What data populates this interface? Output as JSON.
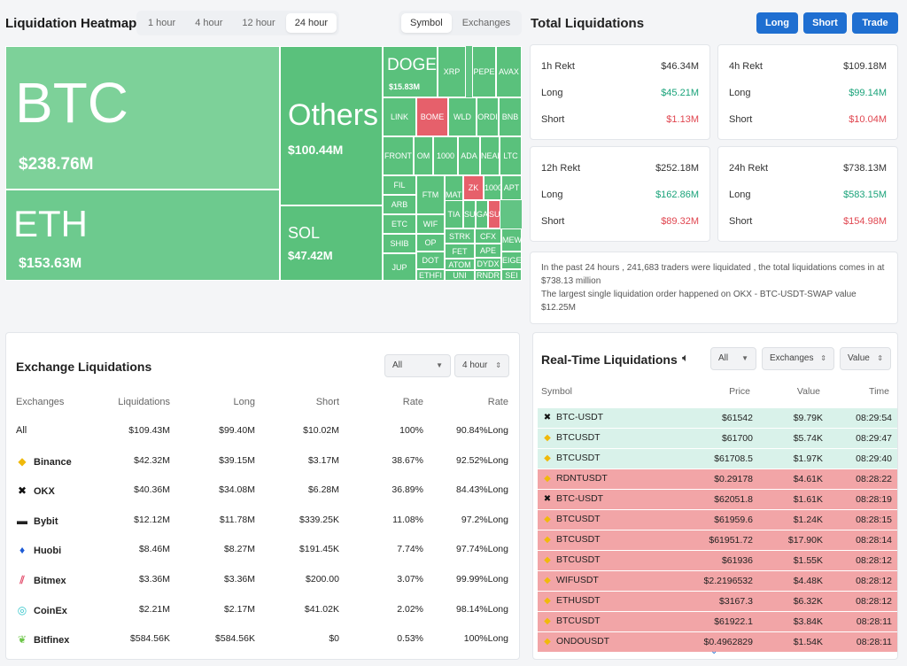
{
  "heatmap": {
    "title": "Liquidation Heatmap",
    "time_tabs": [
      "1 hour",
      "4 hour",
      "12 hour",
      "24 hour"
    ],
    "time_selected": "24 hour",
    "type_tabs": [
      "Symbol",
      "Exchanges"
    ],
    "type_selected": "Symbol",
    "big_tiles": [
      {
        "name": "BTC",
        "value": "$238.76M"
      },
      {
        "name": "ETH",
        "value": "$153.63M"
      },
      {
        "name": "Others",
        "value": "$100.44M"
      },
      {
        "name": "SOL",
        "value": "$47.42M"
      },
      {
        "name": "DOGE",
        "value": "$15.83M"
      }
    ],
    "small_tiles": [
      "XRP",
      "PEPE",
      "AVAX",
      "LINK",
      "BOME",
      "WLD",
      "ORDI",
      "BNB",
      "FRONT",
      "OM",
      "1000",
      "ADA",
      "NEAR",
      "LTC",
      "FIL",
      "FTM",
      "MATIC",
      "ZK",
      "1000",
      "APT",
      "ARB",
      "WIF",
      "TIA",
      "SUI",
      "GALA",
      "SUN",
      "ETC",
      "OP",
      "STRK",
      "CFX",
      "MEW",
      "SHIB",
      "DOT",
      "FET",
      "APE",
      "JUP",
      "ATOM",
      "DYDX",
      "EIGEN",
      "ETHFI",
      "UNI",
      "RNDR",
      "SEI"
    ]
  },
  "total": {
    "title": "Total Liquidations",
    "buttons": [
      "Long",
      "Short",
      "Trade"
    ],
    "cards": [
      {
        "label": "1h Rekt",
        "total": "$46.34M",
        "long_label": "Long",
        "long": "$45.21M",
        "short_label": "Short",
        "short": "$1.13M"
      },
      {
        "label": "4h Rekt",
        "total": "$109.18M",
        "long_label": "Long",
        "long": "$99.14M",
        "short_label": "Short",
        "short": "$10.04M"
      },
      {
        "label": "12h Rekt",
        "total": "$252.18M",
        "long_label": "Long",
        "long": "$162.86M",
        "short_label": "Short",
        "short": "$89.32M"
      },
      {
        "label": "24h Rekt",
        "total": "$738.13M",
        "long_label": "Long",
        "long": "$583.15M",
        "short_label": "Short",
        "short": "$154.98M"
      }
    ],
    "summary_1": "In the past 24 hours , 241,683 traders were liquidated , the total liquidations comes in at $738.13 million",
    "summary_2": "The largest single liquidation order happened on OKX - BTC-USDT-SWAP value $12.25M"
  },
  "exchange": {
    "title": "Exchange Liquidations",
    "filter": "All",
    "period": "4 hour",
    "headers": [
      "Exchanges",
      "Liquidations",
      "Long",
      "Short",
      "Rate",
      "Rate"
    ],
    "rows": [
      {
        "name": "All",
        "icon": "",
        "liq": "$109.43M",
        "long": "$99.40M",
        "short": "$10.02M",
        "rate": "100%",
        "rate2": "90.84%Long"
      },
      {
        "name": "Binance",
        "icon": "binance-icon",
        "liq": "$42.32M",
        "long": "$39.15M",
        "short": "$3.17M",
        "rate": "38.67%",
        "rate2": "92.52%Long"
      },
      {
        "name": "OKX",
        "icon": "okx-icon",
        "liq": "$40.36M",
        "long": "$34.08M",
        "short": "$6.28M",
        "rate": "36.89%",
        "rate2": "84.43%Long"
      },
      {
        "name": "Bybit",
        "icon": "bybit-icon",
        "liq": "$12.12M",
        "long": "$11.78M",
        "short": "$339.25K",
        "rate": "11.08%",
        "rate2": "97.2%Long"
      },
      {
        "name": "Huobi",
        "icon": "huobi-icon",
        "liq": "$8.46M",
        "long": "$8.27M",
        "short": "$191.45K",
        "rate": "7.74%",
        "rate2": "97.74%Long"
      },
      {
        "name": "Bitmex",
        "icon": "bitmex-icon",
        "liq": "$3.36M",
        "long": "$3.36M",
        "short": "$200.00",
        "rate": "3.07%",
        "rate2": "99.99%Long"
      },
      {
        "name": "CoinEx",
        "icon": "coinex-icon",
        "liq": "$2.21M",
        "long": "$2.17M",
        "short": "$41.02K",
        "rate": "2.02%",
        "rate2": "98.14%Long"
      },
      {
        "name": "Bitfinex",
        "icon": "bitfinex-icon",
        "liq": "$584.56K",
        "long": "$584.56K",
        "short": "$0",
        "rate": "0.53%",
        "rate2": "100%Long"
      }
    ]
  },
  "realtime": {
    "title": "Real-Time Liquidations",
    "filter": "All",
    "exchanges": "Exchanges",
    "value": "Value",
    "headers": [
      "Symbol",
      "Price",
      "Value",
      "Time"
    ],
    "rows": [
      {
        "symbol": "BTC-USDT",
        "icon": "okx-icon",
        "price": "$61542",
        "value": "$9.79K",
        "time": "08:29:54",
        "side": "long"
      },
      {
        "symbol": "BTCUSDT",
        "icon": "binance-icon",
        "price": "$61700",
        "value": "$5.74K",
        "time": "08:29:47",
        "side": "long"
      },
      {
        "symbol": "BTCUSDT",
        "icon": "binance-icon",
        "price": "$61708.5",
        "value": "$1.97K",
        "time": "08:29:40",
        "side": "long"
      },
      {
        "symbol": "RDNTUSDT",
        "icon": "binance-icon",
        "price": "$0.29178",
        "value": "$4.61K",
        "time": "08:28:22",
        "side": "short"
      },
      {
        "symbol": "BTC-USDT",
        "icon": "okx-icon",
        "price": "$62051.8",
        "value": "$1.61K",
        "time": "08:28:19",
        "side": "short"
      },
      {
        "symbol": "BTCUSDT",
        "icon": "binance-icon",
        "price": "$61959.6",
        "value": "$1.24K",
        "time": "08:28:15",
        "side": "short"
      },
      {
        "symbol": "BTCUSDT",
        "icon": "binance-icon",
        "price": "$61951.72",
        "value": "$17.90K",
        "time": "08:28:14",
        "side": "short"
      },
      {
        "symbol": "BTCUSDT",
        "icon": "binance-icon",
        "price": "$61936",
        "value": "$1.55K",
        "time": "08:28:12",
        "side": "short"
      },
      {
        "symbol": "WIFUSDT",
        "icon": "binance-icon",
        "price": "$2.2196532",
        "value": "$4.48K",
        "time": "08:28:12",
        "side": "short"
      },
      {
        "symbol": "ETHUSDT",
        "icon": "binance-icon",
        "price": "$3167.3",
        "value": "$6.32K",
        "time": "08:28:12",
        "side": "short"
      },
      {
        "symbol": "BTCUSDT",
        "icon": "binance-icon",
        "price": "$61922.1",
        "value": "$3.84K",
        "time": "08:28:11",
        "side": "short"
      },
      {
        "symbol": "ONDOUSDT",
        "icon": "binance-icon",
        "price": "$0.4962829",
        "value": "$1.54K",
        "time": "08:28:11",
        "side": "short"
      }
    ]
  },
  "colors": {
    "long_bg": "#d9f2ea",
    "short_bg": "#f2a5a7",
    "green_text": "#1aa37a",
    "red_text": "#e0454f",
    "heat_green": "#5ac17c",
    "heat_red": "#e6606b",
    "button": "#1f6fd1"
  }
}
